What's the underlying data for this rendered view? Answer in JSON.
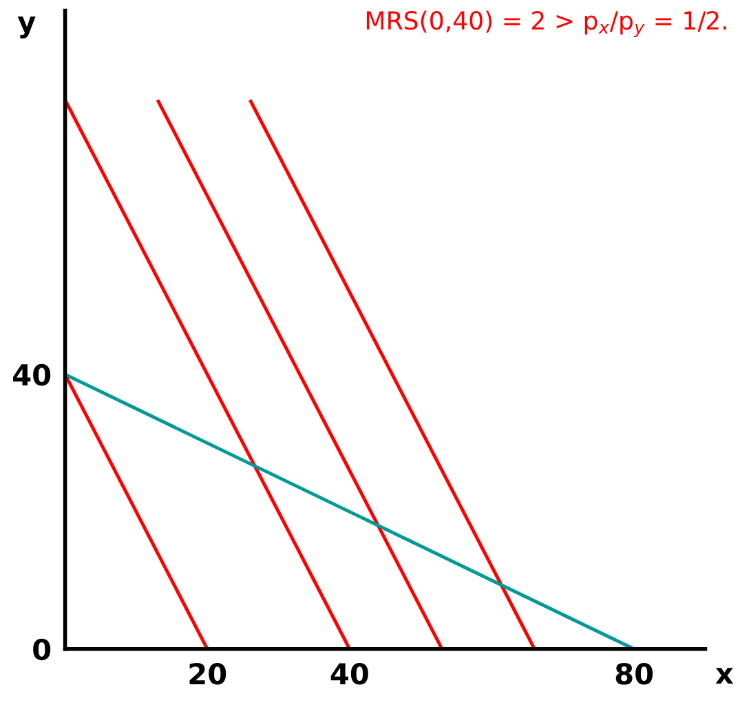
{
  "chart_data": {
    "type": "line",
    "xlabel": "x",
    "ylabel": "y",
    "annotations": [
      "MRS(0,40) = 2 > p$_{x}$/p$_{y}$ = 1/2."
    ],
    "xlim": [
      0,
      90
    ],
    "ylim": [
      0,
      93
    ],
    "xticks": [
      20,
      40,
      80
    ],
    "yticks": [
      0,
      40
    ],
    "grid": false,
    "legend": false,
    "marker": "none",
    "line_style": "solid",
    "series": [
      {
        "color": "#ff0000",
        "x": [
          0,
          20
        ],
        "values": [
          40,
          0
        ]
      },
      {
        "color": "#ff0000",
        "x": [
          0,
          40
        ],
        "values": [
          80,
          0
        ]
      },
      {
        "color": "#ff0000",
        "x": [
          13,
          53
        ],
        "values": [
          80,
          0
        ]
      },
      {
        "color": "#ff0000",
        "x": [
          26,
          66
        ],
        "values": [
          80,
          0
        ]
      },
      {
        "color": "#009999",
        "x": [
          0,
          80
        ],
        "values": [
          40,
          0
        ]
      }
    ]
  }
}
